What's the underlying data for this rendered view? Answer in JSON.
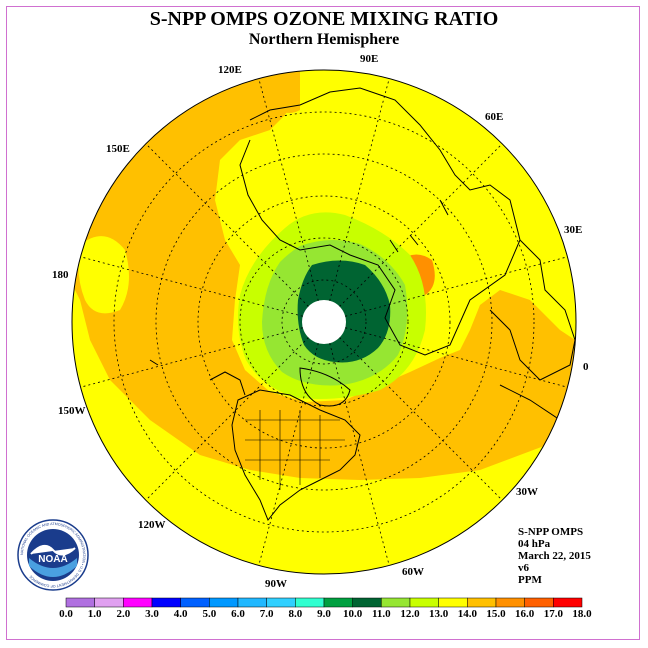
{
  "title": "S-NPP OMPS OZONE MIXING RATIO",
  "subtitle": "Northern Hemisphere",
  "longitude_labels": {
    "e90": "90E",
    "e60": "60E",
    "e30": "30E",
    "zero": "0",
    "w30": "30W",
    "w60": "60W",
    "w90": "90W",
    "w120": "120W",
    "w150": "150W",
    "dateline": "180",
    "e150": "150E",
    "e120": "120E"
  },
  "info": {
    "instrument": "S-NPP OMPS",
    "level": "04 hPa",
    "date": "March 22, 2015",
    "version": "v6",
    "units": "PPM"
  },
  "logo": {
    "text": "NOAA",
    "ring_text": "NATIONAL OCEANIC AND ATMOSPHERIC ADMINISTRATION • U.S. DEPARTMENT OF COMMERCE"
  },
  "colors": {
    "far_field": "#ffff00",
    "orange_band": "#ffc000",
    "dark_orange": "#ff9000",
    "yellow_green": "#c8ff00",
    "light_green": "#96e632",
    "dark_green": "#006432",
    "land_outline": "#000000",
    "frame_border": "#d070d0"
  },
  "legend": {
    "ticks": [
      "0.0",
      "1.0",
      "2.0",
      "3.0",
      "4.0",
      "5.0",
      "6.0",
      "7.0",
      "8.0",
      "9.0",
      "10.0",
      "11.0",
      "12.0",
      "13.0",
      "14.0",
      "15.0",
      "16.0",
      "17.0",
      "18.0"
    ],
    "colors": [
      "#b070e0",
      "#e0a0f0",
      "#ff00ff",
      "#0000ff",
      "#0060ff",
      "#0098ff",
      "#20b8ff",
      "#30d0ff",
      "#30ffd0",
      "#00a040",
      "#006432",
      "#96e632",
      "#c8ff00",
      "#ffff00",
      "#ffc000",
      "#ff9000",
      "#ff6000",
      "#ff0000",
      "#905030"
    ]
  }
}
